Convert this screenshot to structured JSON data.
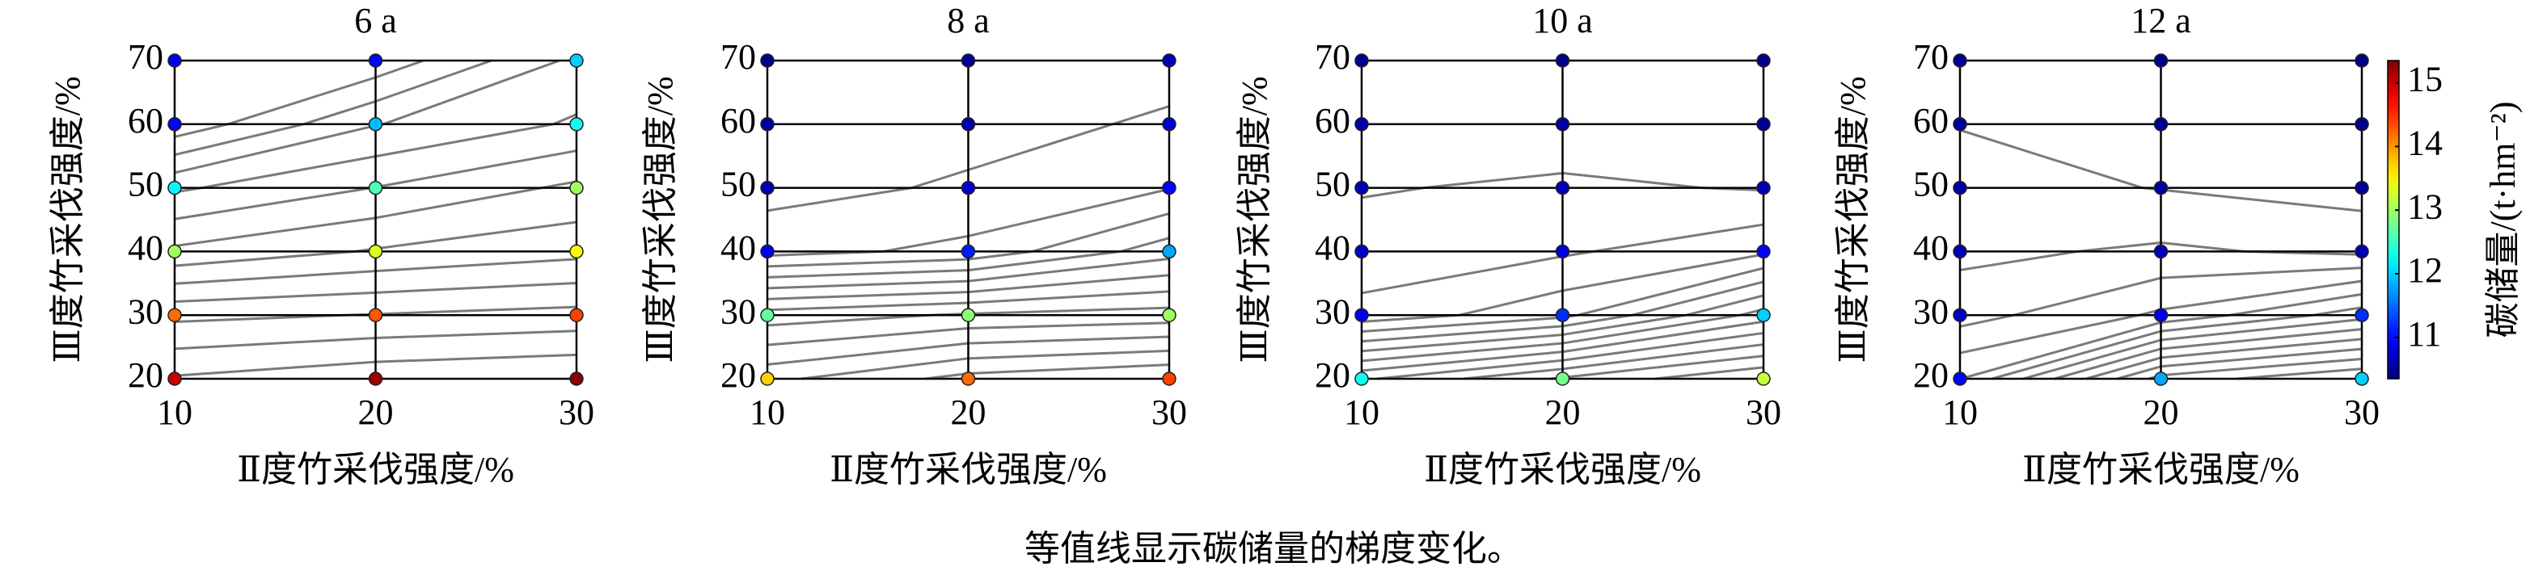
{
  "caption": "等值线显示碳储量的梯度变化。",
  "chart_data": [
    {
      "type": "contour",
      "title": "6 a",
      "xlabel": "Ⅱ度竹采伐强度/%",
      "ylabel": "Ⅲ度竹采伐强度/%",
      "x": [
        10,
        20,
        30
      ],
      "y": [
        20,
        30,
        40,
        50,
        60,
        70
      ],
      "z": [
        [
          15.0,
          15.2,
          15.3
        ],
        [
          14.2,
          14.3,
          14.4
        ],
        [
          13.0,
          13.3,
          13.5
        ],
        [
          12.2,
          12.6,
          13.0
        ],
        [
          11.0,
          11.9,
          12.3
        ],
        [
          10.9,
          11.0,
          12.0
        ]
      ],
      "xlim": [
        10,
        30
      ],
      "ylim": [
        20,
        70
      ],
      "xticks": [
        10,
        20,
        30
      ],
      "yticks": [
        20,
        30,
        40,
        50,
        60,
        70
      ],
      "grid": true,
      "colormap": "jet",
      "clim": [
        10.35,
        15.35
      ]
    },
    {
      "type": "contour",
      "title": "8 a",
      "xlabel": "Ⅱ度竹采伐强度/%",
      "ylabel": "Ⅲ度竹采伐强度/%",
      "x": [
        10,
        20,
        30
      ],
      "y": [
        20,
        30,
        40,
        50,
        60,
        70
      ],
      "z": [
        [
          13.7,
          14.2,
          14.4
        ],
        [
          12.7,
          12.9,
          13.0
        ],
        [
          10.9,
          11.1,
          11.8
        ],
        [
          10.6,
          10.75,
          11.0
        ],
        [
          10.5,
          10.6,
          10.75
        ],
        [
          10.4,
          10.45,
          10.6
        ]
      ],
      "xlim": [
        10,
        30
      ],
      "ylim": [
        20,
        70
      ],
      "xticks": [
        10,
        20,
        30
      ],
      "yticks": [
        20,
        30,
        40,
        50,
        60,
        70
      ],
      "grid": true,
      "colormap": "jet",
      "clim": [
        10.35,
        15.35
      ]
    },
    {
      "type": "contour",
      "title": "10 a",
      "xlabel": "Ⅱ度竹采伐强度/%",
      "ylabel": "Ⅲ度竹采伐强度/%",
      "x": [
        10,
        20,
        30
      ],
      "y": [
        20,
        30,
        40,
        50,
        60,
        70
      ],
      "z": [
        [
          12.3,
          12.8,
          13.2
        ],
        [
          10.9,
          11.2,
          12.0
        ],
        [
          10.7,
          10.8,
          11.0
        ],
        [
          10.6,
          10.65,
          10.6
        ],
        [
          10.55,
          10.5,
          10.45
        ],
        [
          10.45,
          10.42,
          10.4
        ]
      ],
      "xlim": [
        10,
        30
      ],
      "ylim": [
        20,
        70
      ],
      "xticks": [
        10,
        20,
        30
      ],
      "yticks": [
        20,
        30,
        40,
        50,
        60,
        70
      ],
      "grid": true,
      "colormap": "jet",
      "clim": [
        10.35,
        15.35
      ]
    },
    {
      "type": "contour",
      "title": "12 a",
      "xlabel": "Ⅱ度竹采伐强度/%",
      "ylabel": "Ⅲ度竹采伐强度/%",
      "x": [
        10,
        20,
        30
      ],
      "y": [
        20,
        30,
        40,
        50,
        60,
        70
      ],
      "z": [
        [
          11.0,
          11.8,
          12.0
        ],
        [
          10.7,
          10.9,
          11.2
        ],
        [
          10.6,
          10.65,
          10.6
        ],
        [
          10.55,
          10.5,
          10.45
        ],
        [
          10.5,
          10.45,
          10.4
        ],
        [
          10.45,
          10.42,
          10.38
        ]
      ],
      "xlim": [
        10,
        30
      ],
      "ylim": [
        20,
        70
      ],
      "xticks": [
        10,
        20,
        30
      ],
      "yticks": [
        20,
        30,
        40,
        50,
        60,
        70
      ],
      "grid": true,
      "colormap": "jet",
      "clim": [
        10.35,
        15.35
      ],
      "colorbar": {
        "label": "碳储量/(t·hm⁻²)",
        "ticks": [
          11,
          12,
          13,
          14,
          15
        ]
      }
    }
  ]
}
